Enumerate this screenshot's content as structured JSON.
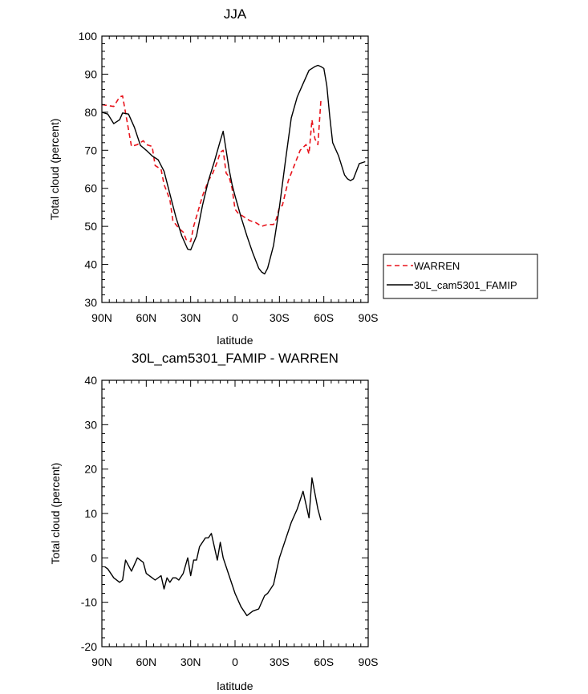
{
  "chart_data": [
    {
      "type": "line",
      "title": "JJA",
      "xlabel": "latitude",
      "ylabel": "Total cloud (percent)",
      "x_tick_labels": [
        "90N",
        "60N",
        "30N",
        "0",
        "30S",
        "60S",
        "90S"
      ],
      "x_ticks": [
        90,
        60,
        30,
        0,
        -30,
        -60,
        -90
      ],
      "xlim": [
        90,
        -90
      ],
      "ylim": [
        30,
        100
      ],
      "y_ticks": [
        30,
        40,
        50,
        60,
        70,
        80,
        90,
        100
      ],
      "legend": {
        "placement": "right"
      },
      "series": [
        {
          "name": "WARREN",
          "color": "#e8141c",
          "dash": "dashed",
          "x": [
            90,
            82,
            78,
            76,
            70,
            66,
            62,
            60,
            56,
            54,
            50,
            48,
            46,
            44,
            42,
            40,
            38,
            35,
            33,
            30,
            28,
            25,
            22,
            18,
            15,
            12,
            10,
            8,
            6,
            4,
            2,
            0,
            -2,
            -6,
            -10,
            -14,
            -18,
            -22,
            -26,
            -28,
            -30,
            -32,
            -36,
            -40,
            -44,
            -48,
            -50,
            -52,
            -54,
            -56,
            -58
          ],
          "y": [
            82,
            81.5,
            84,
            84.3,
            71,
            71.5,
            72.5,
            71.5,
            71,
            66,
            65,
            61,
            59,
            57,
            51.5,
            50.5,
            49.5,
            48.5,
            46.5,
            46,
            50,
            54,
            58,
            62,
            64,
            67,
            69.5,
            70,
            64,
            63,
            60,
            54.5,
            53.5,
            52.5,
            51.5,
            51,
            50,
            50.5,
            50.5,
            52,
            55,
            55.5,
            62,
            66,
            70,
            71.5,
            69,
            78,
            73,
            71.5,
            83
          ]
        },
        {
          "name": "30L_cam5301_FAMIP",
          "color": "#000000",
          "dash": "solid",
          "x": [
            90,
            86,
            82,
            78,
            76,
            72,
            68,
            64,
            60,
            56,
            52,
            48,
            44,
            40,
            36,
            32,
            30,
            26,
            22,
            18,
            14,
            10,
            8,
            6,
            4,
            2,
            0,
            -4,
            -8,
            -12,
            -16,
            -18,
            -20,
            -22,
            -26,
            -30,
            -34,
            -38,
            -42,
            -46,
            -50,
            -54,
            -56,
            -58,
            -60,
            -62,
            -64,
            -66,
            -70,
            -74,
            -76,
            -78,
            -80,
            -84,
            -88
          ],
          "y": [
            80,
            79.5,
            77,
            78,
            79.8,
            79.5,
            76,
            71.3,
            70,
            68.5,
            67.5,
            64.5,
            58.5,
            52.5,
            47.5,
            44,
            43.8,
            47.5,
            55.5,
            62,
            67,
            72.5,
            75,
            70,
            65,
            61,
            58,
            52.5,
            47.5,
            43,
            39,
            38,
            37.5,
            39,
            45,
            55,
            67,
            78.5,
            84,
            87.5,
            91,
            92,
            92.3,
            92,
            91.5,
            87,
            79,
            72,
            68.5,
            63.5,
            62.5,
            62,
            62.5,
            66.5,
            67
          ]
        }
      ]
    },
    {
      "type": "line",
      "title": "30L_cam5301_FAMIP - WARREN",
      "xlabel": "latitude",
      "ylabel": "Total cloud (percent)",
      "x_tick_labels": [
        "90N",
        "60N",
        "30N",
        "0",
        "30S",
        "60S",
        "90S"
      ],
      "x_ticks": [
        90,
        60,
        30,
        0,
        -30,
        -60,
        -90
      ],
      "xlim": [
        90,
        -90
      ],
      "ylim": [
        -20,
        40
      ],
      "y_ticks": [
        -20,
        -10,
        0,
        10,
        20,
        30,
        40
      ],
      "series": [
        {
          "color": "#000000",
          "dash": "solid",
          "x": [
            88,
            86,
            82,
            78,
            76,
            74,
            70,
            66,
            62,
            60,
            56,
            54,
            50,
            48,
            46,
            44,
            42,
            40,
            38,
            35,
            32,
            30,
            28,
            26,
            24,
            20,
            18,
            16,
            12,
            10,
            8,
            6,
            4,
            2,
            0,
            -4,
            -8,
            -12,
            -16,
            -20,
            -22,
            -26,
            -28,
            -30,
            -34,
            -38,
            -42,
            -46,
            -48,
            -50,
            -52,
            -56,
            -58
          ],
          "y": [
            -2,
            -2.5,
            -4.5,
            -5.5,
            -5,
            -0.5,
            -3,
            0,
            -1,
            -3.5,
            -4.5,
            -5,
            -4,
            -7,
            -4.5,
            -5.5,
            -4.5,
            -4.5,
            -5,
            -3.5,
            0,
            -4,
            -0.5,
            -0.5,
            2.5,
            4.5,
            4.5,
            5.5,
            -0.5,
            3.5,
            0,
            -2,
            -4,
            -6,
            -8,
            -11,
            -13,
            -12,
            -11.5,
            -8.5,
            -8,
            -6,
            -3,
            0,
            4,
            8,
            11,
            15,
            12,
            9,
            18,
            11,
            8.5
          ]
        }
      ]
    }
  ]
}
